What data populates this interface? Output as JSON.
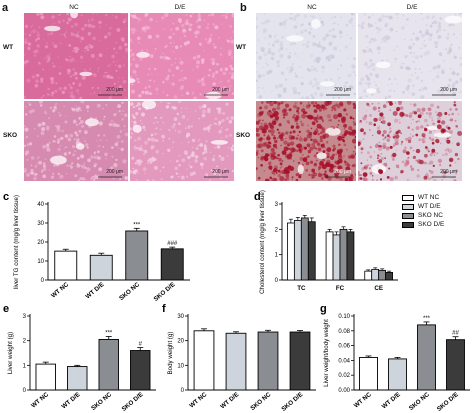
{
  "figure": {
    "histology": [
      {
        "letter": "a",
        "column_labels": [
          "NC",
          "D/E"
        ],
        "row_labels": [
          "WT",
          "SKO"
        ],
        "scale_text": "200 μm",
        "stain": "H&E"
      },
      {
        "letter": "b",
        "column_labels": [
          "NC",
          "D/E"
        ],
        "row_labels": [
          "WT",
          "SKO"
        ],
        "scale_text": "200 μm",
        "stain": "Oil Red O"
      }
    ],
    "legend": {
      "entries": [
        "WT NC",
        "WT D/E",
        "SKO NC",
        "SKO D/E"
      ],
      "colors": [
        "#ffffff",
        "#cdd4dc",
        "#8a8e93",
        "#3b3b3b"
      ]
    }
  },
  "chart_data": [
    {
      "panel": "c",
      "type": "bar",
      "categories": [
        "WT NC",
        "WT D/E",
        "SKO NC",
        "SKO D/E"
      ],
      "values": [
        15.2,
        13.0,
        25.8,
        16.4
      ],
      "errors": [
        1.0,
        1.1,
        1.4,
        0.9
      ],
      "annotations": [
        "",
        "",
        "***",
        "###"
      ],
      "ylabel": "liver TG content (mg/g liver tissue)",
      "ylim": [
        0,
        40
      ],
      "yticks": [
        0,
        10,
        20,
        30,
        40
      ],
      "colors": [
        "#ffffff",
        "#cdd4dc",
        "#8a8e93",
        "#3b3b3b"
      ]
    },
    {
      "panel": "d",
      "type": "bar",
      "categories": [
        "TC",
        "FC",
        "CE"
      ],
      "series": [
        {
          "name": "WT NC",
          "values": [
            2.25,
            1.9,
            0.35
          ],
          "errors": [
            0.15,
            0.1,
            0.05
          ]
        },
        {
          "name": "WT D/E",
          "values": [
            2.35,
            1.78,
            0.42
          ],
          "errors": [
            0.12,
            0.12,
            0.06
          ]
        },
        {
          "name": "SKO NC",
          "values": [
            2.45,
            2.0,
            0.38
          ],
          "errors": [
            0.1,
            0.1,
            0.06
          ]
        },
        {
          "name": "SKO D/E",
          "values": [
            2.3,
            1.9,
            0.3
          ],
          "errors": [
            0.15,
            0.1,
            0.05
          ]
        }
      ],
      "ylabel": "Cholesterol content (mg/g liver tissue)",
      "ylim": [
        0,
        3
      ],
      "yticks": [
        0,
        1,
        2,
        3
      ],
      "colors": [
        "#ffffff",
        "#cdd4dc",
        "#8a8e93",
        "#3b3b3b"
      ]
    },
    {
      "panel": "e",
      "type": "bar",
      "categories": [
        "WT NC",
        "WT D/E",
        "SKO NC",
        "SKO D/E"
      ],
      "values": [
        1.05,
        0.95,
        2.05,
        1.6
      ],
      "errors": [
        0.08,
        0.05,
        0.12,
        0.12
      ],
      "annotations": [
        "",
        "",
        "***",
        "#"
      ],
      "ylabel": "Liver weight (g)",
      "ylim": [
        0,
        3
      ],
      "yticks": [
        0,
        1,
        2,
        3
      ],
      "colors": [
        "#ffffff",
        "#cdd4dc",
        "#8a8e93",
        "#3b3b3b"
      ]
    },
    {
      "panel": "f",
      "type": "bar",
      "categories": [
        "WT NC",
        "WT D/E",
        "SKO NC",
        "SKO D/E"
      ],
      "values": [
        24,
        23,
        23.5,
        23.5
      ],
      "errors": [
        0.8,
        0.6,
        0.7,
        0.6
      ],
      "annotations": [
        "",
        "",
        "",
        ""
      ],
      "ylabel": "Body weight (g)",
      "ylim": [
        0,
        30
      ],
      "yticks": [
        0,
        10,
        20,
        30
      ],
      "colors": [
        "#ffffff",
        "#cdd4dc",
        "#8a8e93",
        "#3b3b3b"
      ]
    },
    {
      "panel": "g",
      "type": "bar",
      "categories": [
        "WT NC",
        "WT D/E",
        "SKO NC",
        "SKO D/E"
      ],
      "values": [
        0.044,
        0.042,
        0.088,
        0.068
      ],
      "errors": [
        0.002,
        0.002,
        0.004,
        0.004
      ],
      "annotations": [
        "",
        "",
        "***",
        "##"
      ],
      "ylabel": "Liver weight/body weight",
      "ylim": [
        0,
        0.1
      ],
      "yticks": [
        0,
        0.02,
        0.04,
        0.06,
        0.08,
        0.1
      ],
      "ytick_labels": [
        "0.00",
        "0.02",
        "0.04",
        "0.06",
        "0.08",
        "0.10"
      ],
      "colors": [
        "#ffffff",
        "#cdd4dc",
        "#8a8e93",
        "#3b3b3b"
      ]
    }
  ]
}
